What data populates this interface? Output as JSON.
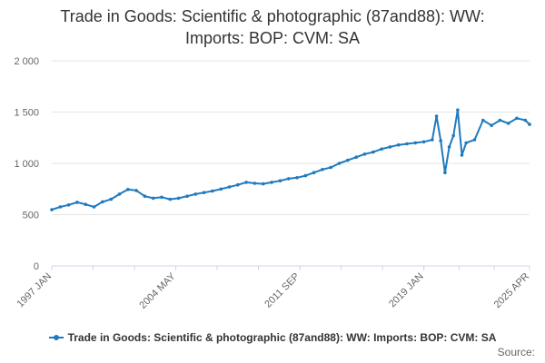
{
  "title_lines": [
    "Trade in Goods: Scientific & photographic (87and88): WW:",
    "Imports: BOP: CVM: SA"
  ],
  "legend": {
    "label": "Trade in Goods: Scientific & photographic (87and88): WW: Imports: BOP: CVM: SA"
  },
  "source": "Source:",
  "colors": {
    "series": "#1f7abf",
    "grid": "#e6e6e6",
    "axis": "#ccd6eb",
    "tick_text": "#666666"
  },
  "chart_data": {
    "type": "line",
    "xlabel": "",
    "ylabel": "",
    "x_range": [
      "1997-01",
      "2025-04"
    ],
    "ylim": [
      0,
      2000
    ],
    "y_ticks": [
      0,
      500,
      1000,
      1500,
      2000
    ],
    "y_tick_labels": [
      "0",
      "500",
      "1 000",
      "1 500",
      "2 000"
    ],
    "x_ticks": [
      "1997-01",
      "2004-05",
      "2011-09",
      "2019-01",
      "2025-04"
    ],
    "x_tick_labels": [
      "1997 JAN",
      "2004 MAY",
      "2011 SEP",
      "2019 JAN",
      "2025 APR"
    ],
    "grid": "horizontal",
    "legend_position": "bottom",
    "series": [
      {
        "name": "Trade in Goods: Scientific & photographic (87and88): WW: Imports: BOP: CVM: SA",
        "points": [
          [
            "1997-01",
            548
          ],
          [
            "1997-07",
            575
          ],
          [
            "1998-01",
            595
          ],
          [
            "1998-07",
            620
          ],
          [
            "1999-01",
            600
          ],
          [
            "1999-07",
            575
          ],
          [
            "2000-01",
            625
          ],
          [
            "2000-07",
            650
          ],
          [
            "2001-01",
            700
          ],
          [
            "2001-07",
            745
          ],
          [
            "2002-01",
            735
          ],
          [
            "2002-07",
            680
          ],
          [
            "2003-01",
            660
          ],
          [
            "2003-07",
            670
          ],
          [
            "2004-01",
            650
          ],
          [
            "2004-07",
            660
          ],
          [
            "2005-01",
            680
          ],
          [
            "2005-07",
            700
          ],
          [
            "2006-01",
            715
          ],
          [
            "2006-07",
            730
          ],
          [
            "2007-01",
            750
          ],
          [
            "2007-07",
            770
          ],
          [
            "2008-01",
            790
          ],
          [
            "2008-07",
            815
          ],
          [
            "2009-01",
            805
          ],
          [
            "2009-07",
            800
          ],
          [
            "2010-01",
            815
          ],
          [
            "2010-07",
            830
          ],
          [
            "2011-01",
            850
          ],
          [
            "2011-07",
            860
          ],
          [
            "2012-01",
            880
          ],
          [
            "2012-07",
            910
          ],
          [
            "2013-01",
            940
          ],
          [
            "2013-07",
            960
          ],
          [
            "2014-01",
            1000
          ],
          [
            "2014-07",
            1030
          ],
          [
            "2015-01",
            1060
          ],
          [
            "2015-07",
            1090
          ],
          [
            "2016-01",
            1110
          ],
          [
            "2016-07",
            1140
          ],
          [
            "2017-01",
            1160
          ],
          [
            "2017-07",
            1180
          ],
          [
            "2018-01",
            1190
          ],
          [
            "2018-07",
            1200
          ],
          [
            "2019-01",
            1210
          ],
          [
            "2019-07",
            1230
          ],
          [
            "2019-10",
            1460
          ],
          [
            "2020-01",
            1220
          ],
          [
            "2020-04",
            910
          ],
          [
            "2020-07",
            1160
          ],
          [
            "2020-10",
            1270
          ],
          [
            "2021-01",
            1520
          ],
          [
            "2021-04",
            1080
          ],
          [
            "2021-07",
            1200
          ],
          [
            "2022-01",
            1230
          ],
          [
            "2022-07",
            1420
          ],
          [
            "2023-01",
            1370
          ],
          [
            "2023-07",
            1420
          ],
          [
            "2024-01",
            1390
          ],
          [
            "2024-07",
            1440
          ],
          [
            "2025-01",
            1420
          ],
          [
            "2025-04",
            1380
          ]
        ]
      }
    ]
  }
}
